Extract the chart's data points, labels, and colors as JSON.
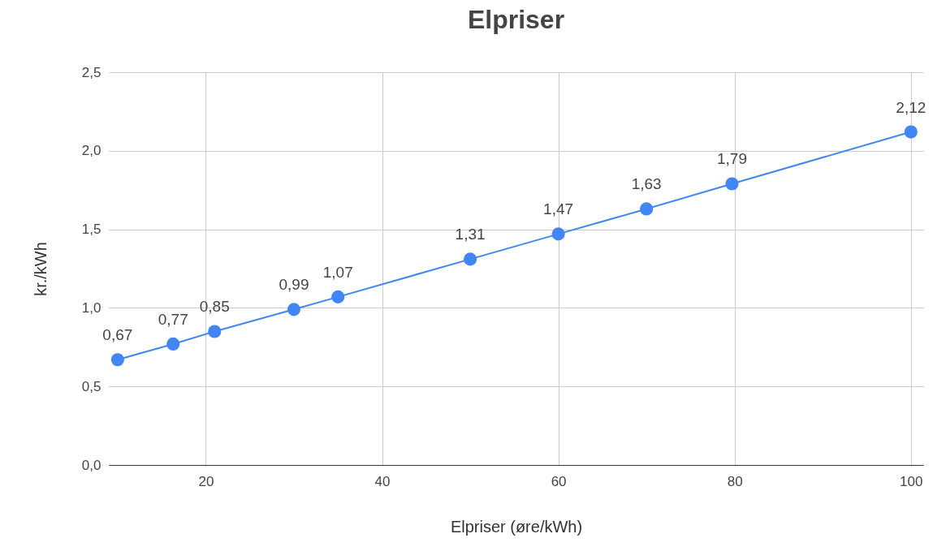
{
  "chart_data": {
    "type": "line",
    "title": "Elpriser",
    "xlabel": "Elpriser (øre/kWh)",
    "ylabel": "kr./kWh",
    "x": [
      10,
      16.3,
      21,
      30,
      35,
      50,
      60,
      70,
      79.7,
      100
    ],
    "series": [
      {
        "color": "#4285f4",
        "values": [
          0.67,
          0.77,
          0.85,
          0.99,
          1.07,
          1.31,
          1.47,
          1.63,
          1.79,
          2.12
        ],
        "value_labels": [
          "0,67",
          "0,77",
          "0,85",
          "0,99",
          "1,07",
          "1,31",
          "1,47",
          "1,63",
          "1,79",
          "2,12"
        ]
      }
    ],
    "xlim": [
      9,
      101.4
    ],
    "xticks": [
      20,
      40,
      60,
      80,
      100
    ],
    "ylim": [
      0,
      2.5
    ],
    "yticks": [
      {
        "value": 0,
        "label": "0,0"
      },
      {
        "value": 0.5,
        "label": "0,5"
      },
      {
        "value": 1,
        "label": "1,0"
      },
      {
        "value": 1.5,
        "label": "1,5"
      },
      {
        "value": 2,
        "label": "2,0"
      },
      {
        "value": 2.5,
        "label": "2,5"
      }
    ],
    "grid": true,
    "marker": "circle",
    "line_style": "solid",
    "legend": false
  }
}
